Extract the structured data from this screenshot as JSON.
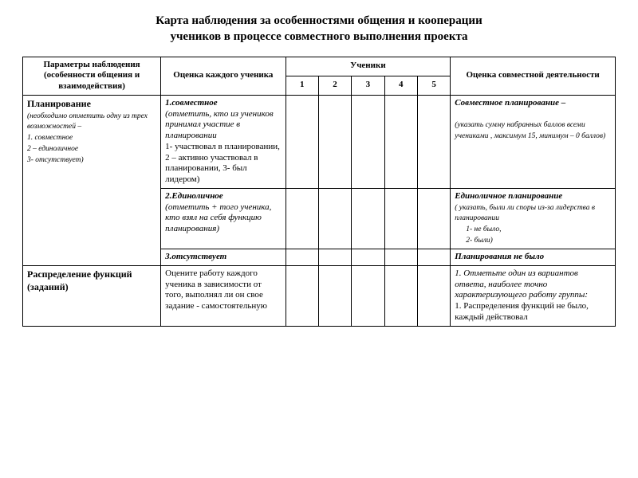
{
  "title_line1": "Карта  наблюдения за особенностями общения и кооперации",
  "title_line2": "учеников в процессе совместного выполнения проекта",
  "header": {
    "params": "Параметры наблюдения (особенности общения и взаимодействия)",
    "eval_each": "Оценка каждого ученика",
    "students": "Ученики",
    "s1": "1",
    "s2": "2",
    "s3": "3",
    "s4": "4",
    "s5": "5",
    "eval_joint": "Оценка совместной деятельности"
  },
  "planning": {
    "param_title": "Планирование",
    "param_note": "(необходимо отметить одну из трех возможностей –",
    "param_opt1": "1. совместное",
    "param_opt2": "2 – единоличное",
    "param_opt3": "3- отсутствует)",
    "eval1_head": "1.совместное",
    "eval1_body": "(отметить, кто из учеников принимал участие в планировании",
    "eval1_scale": "1- участвовал в планировании, 2 – активно участвовал в планировании, 3- был лидером)",
    "joint1_head": "Совместное планирование –",
    "joint1_note": "(указать сумму набранных баллов  всеми учениками , максимум 15, минимум – 0 баллов)",
    "eval2_head": "2.Единоличное",
    "eval2_body": "(отметить + того ученика, кто взял на себя функцию планирования)",
    "joint2_head": "Единоличное планирование",
    "joint2_note": "( указать, были ли споры из-за лидерства в планировании",
    "joint2_opt1": "1-   не было,",
    "joint2_opt2": "2-   были)",
    "eval3_head": "3.отсутствует",
    "joint3_head": "Планирования не было"
  },
  "distribution": {
    "param_title": "Распределение функций (заданий)",
    "eval_body": "Оцените работу каждого ученика в зависимости от того, выполнял ли он свое задание - самостоятельную",
    "joint_lead": "1. Отметьте один из вариантов ответа, наиболее точно характеризующего работу группы:",
    "joint_item1": "1. Распределения функций не было, каждый действовал"
  }
}
